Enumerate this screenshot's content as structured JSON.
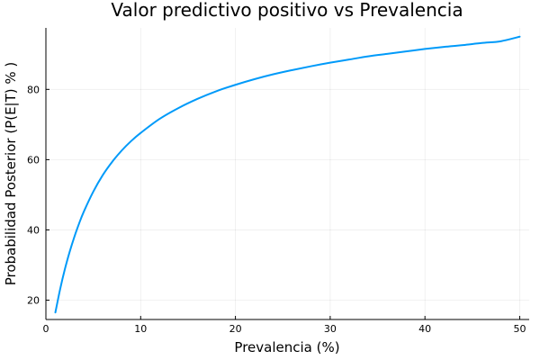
{
  "chart_data": {
    "type": "line",
    "title": "Valor predictivo positivo vs Prevalencia",
    "xlabel": "Prevalencia (%)",
    "ylabel": "Probabilidad Posterior (P(E|T) % )",
    "xlim": [
      0,
      51
    ],
    "ylim": [
      14.5,
      97.5
    ],
    "xticks": [
      0,
      10,
      20,
      30,
      40,
      50
    ],
    "yticks": [
      20,
      40,
      60,
      80
    ],
    "grid": true,
    "series": [
      {
        "color": "#009af9",
        "x": [
          1,
          1.5,
          2,
          2.5,
          3,
          3.5,
          4,
          5,
          6,
          7,
          8,
          9,
          10,
          12,
          14,
          16,
          18,
          20,
          22,
          24,
          26,
          28,
          30,
          32,
          34,
          36,
          38,
          40,
          42,
          44,
          46,
          48,
          50
        ],
        "y": [
          16.5,
          23.1,
          28.8,
          33.7,
          38.0,
          41.8,
          45.2,
          50.9,
          55.6,
          59.4,
          62.6,
          65.3,
          67.6,
          71.6,
          74.7,
          77.3,
          79.5,
          81.3,
          82.9,
          84.3,
          85.5,
          86.6,
          87.6,
          88.5,
          89.4,
          90.1,
          90.8,
          91.5,
          92.1,
          92.6,
          93.2,
          93.7,
          95.0
        ]
      }
    ]
  }
}
